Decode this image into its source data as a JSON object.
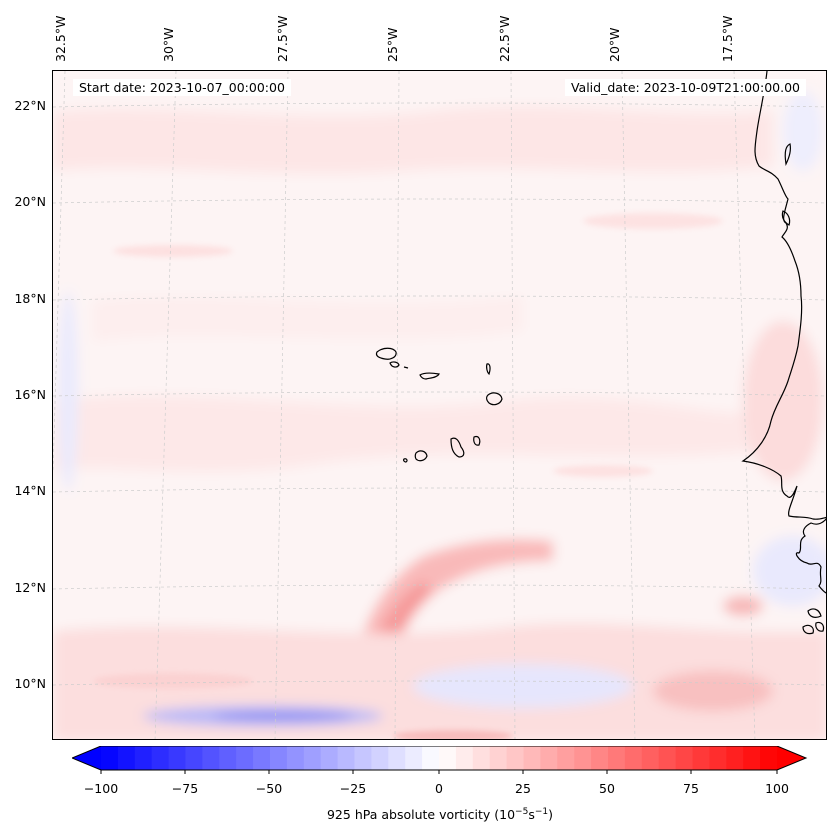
{
  "map": {
    "start_date": "Start date: 2023-10-07_00:00:00",
    "valid_date": "Valid_date: 2023-10-09T21:00:00.00",
    "lon_labels": [
      "32.5°W",
      "30°W",
      "27.5°W",
      "25°W",
      "22.5°W",
      "20°W",
      "17.5°W"
    ],
    "lat_labels": [
      "22°N",
      "20°N",
      "18°N",
      "16°N",
      "14°N",
      "12°N",
      "10°N"
    ],
    "field": "925 hPa absolute vorticity",
    "colors": {
      "land_outline": "#000000",
      "grid": "#cccccc",
      "background": "#fdf6f6"
    }
  },
  "colorbar": {
    "ticks": [
      "−100",
      "−75",
      "−50",
      "−25",
      "0",
      "25",
      "50",
      "75",
      "100"
    ],
    "label_main": "925 hPa absolute vorticity (10",
    "label_exp1": "−5",
    "label_mid": "s",
    "label_exp2": "−1",
    "label_end": ")",
    "min_color": "#0000ff",
    "mid_color": "#ffffff",
    "max_color": "#ff0000"
  }
}
